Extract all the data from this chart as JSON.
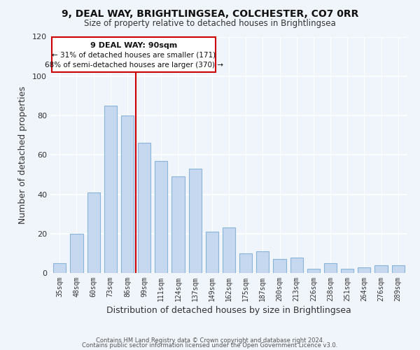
{
  "title": "9, DEAL WAY, BRIGHTLINGSEA, COLCHESTER, CO7 0RR",
  "subtitle": "Size of property relative to detached houses in Brightlingsea",
  "xlabel": "Distribution of detached houses by size in Brightlingsea",
  "ylabel": "Number of detached properties",
  "categories": [
    "35sqm",
    "48sqm",
    "60sqm",
    "73sqm",
    "86sqm",
    "99sqm",
    "111sqm",
    "124sqm",
    "137sqm",
    "149sqm",
    "162sqm",
    "175sqm",
    "187sqm",
    "200sqm",
    "213sqm",
    "226sqm",
    "238sqm",
    "251sqm",
    "264sqm",
    "276sqm",
    "289sqm"
  ],
  "values": [
    5,
    20,
    41,
    85,
    80,
    66,
    57,
    49,
    53,
    21,
    23,
    10,
    11,
    7,
    8,
    2,
    5,
    2,
    3,
    4,
    4
  ],
  "bar_color": "#c5d8f0",
  "bar_edge_color": "#8ab4d8",
  "highlight_line_color": "#cc0000",
  "ylim": [
    0,
    120
  ],
  "yticks": [
    0,
    20,
    40,
    60,
    80,
    100,
    120
  ],
  "annotation_title": "9 DEAL WAY: 90sqm",
  "annotation_line1": "← 31% of detached houses are smaller (171)",
  "annotation_line2": "68% of semi-detached houses are larger (370) →",
  "footer1": "Contains HM Land Registry data © Crown copyright and database right 2024.",
  "footer2": "Contains public sector information licensed under the Open Government Licence v3.0.",
  "background_color": "#f0f4fb"
}
